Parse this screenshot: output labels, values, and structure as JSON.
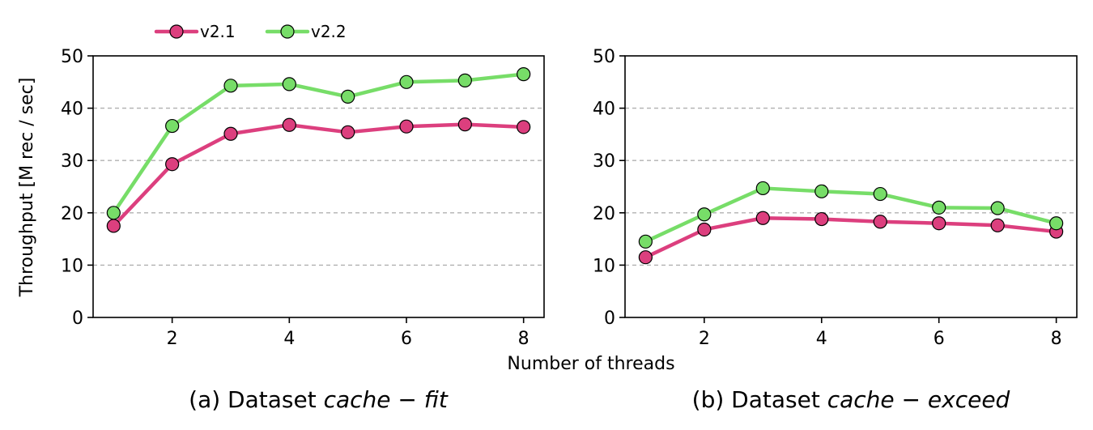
{
  "x_axis_label": "Number of threads",
  "y_axis_label": "Throughput [M rec / sec]",
  "legend": {
    "placement": "top-left, above plots",
    "entries": [
      "v2.1",
      "v2.2"
    ]
  },
  "colors": {
    "v2.1": "#dc3f7e",
    "v2.2": "#77dd68",
    "grid": "#b0b0b0",
    "marker_edge": "#000000"
  },
  "chart_data": [
    {
      "type": "line",
      "caption_prefix": "(a) Dataset ",
      "caption_math": "cache − fit",
      "xlabel": "Number of threads",
      "ylabel": "Throughput [M rec / sec]",
      "xlim": [
        0.65,
        8.35
      ],
      "ylim": [
        0,
        50
      ],
      "xticks": [
        2,
        4,
        6,
        8
      ],
      "yticks": [
        0,
        10,
        20,
        30,
        40,
        50
      ],
      "grid": "horizontal dashed",
      "x": [
        1,
        2,
        3,
        4,
        5,
        6,
        7,
        8
      ],
      "series": [
        {
          "name": "v2.1",
          "values": [
            17.5,
            29.3,
            35.1,
            36.8,
            35.4,
            36.5,
            36.9,
            36.4
          ]
        },
        {
          "name": "v2.2",
          "values": [
            20.0,
            36.6,
            44.3,
            44.6,
            42.2,
            45.0,
            45.3,
            46.5
          ]
        }
      ]
    },
    {
      "type": "line",
      "caption_prefix": "(b) Dataset ",
      "caption_math": "cache − exceed",
      "xlabel": "Number of threads",
      "ylabel": "",
      "xlim": [
        0.65,
        8.35
      ],
      "ylim": [
        0,
        50
      ],
      "xticks": [
        2,
        4,
        6,
        8
      ],
      "yticks": [
        0,
        10,
        20,
        30,
        40,
        50
      ],
      "grid": "horizontal dashed",
      "x": [
        1,
        2,
        3,
        4,
        5,
        6,
        7,
        8
      ],
      "series": [
        {
          "name": "v2.1",
          "values": [
            11.5,
            16.8,
            19.0,
            18.8,
            18.3,
            18.0,
            17.6,
            16.4
          ]
        },
        {
          "name": "v2.2",
          "values": [
            14.5,
            19.7,
            24.7,
            24.1,
            23.6,
            21.0,
            20.9,
            18.0
          ]
        }
      ]
    }
  ]
}
